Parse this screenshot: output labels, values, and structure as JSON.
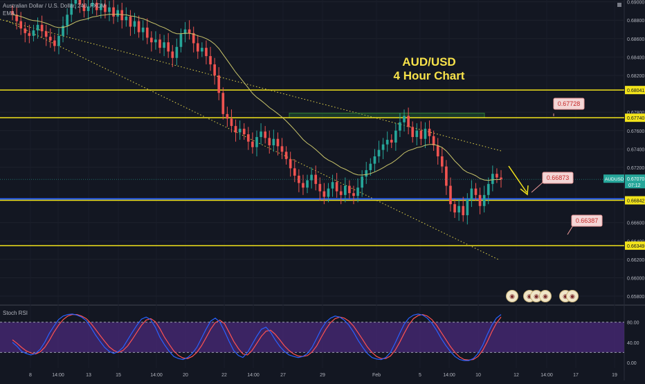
{
  "legend": {
    "symbol_line": "Australian Dollar / U.S. Dollar, 240, FXCM",
    "ema_label": "EMA"
  },
  "title_lines": [
    "AUD/USD",
    "4 Hour Chart"
  ],
  "rsi_label": "Stoch RSI",
  "colors": {
    "background": "#131722",
    "up": "#26a69a",
    "down": "#ef5350",
    "level_line": "#f2e31b",
    "ema": "#c9c46a",
    "trend_dotted": "#e8d94a",
    "support_blue": "#2962ff",
    "rsi_band": "#4a2a7a",
    "rsi_k": "#2962ff",
    "rsi_d": "#ff5252",
    "callout_fill": "#f3d6d6",
    "callout_text": "#c62828"
  },
  "chart_data": [
    {
      "type": "candlestick",
      "symbol": "AUDUSD",
      "interval": "240",
      "x_tick_labels": [
        "8",
        "14:00",
        "13",
        "15",
        "14:00",
        "20",
        "22",
        "14:00",
        "27",
        "29",
        "Feb",
        "5",
        "14:00",
        "10",
        "12",
        "14:00",
        "17",
        "19"
      ],
      "y_tick_labels": [
        "0.69000",
        "0.68800",
        "0.68600",
        "0.68400",
        "0.68200",
        "0.67800",
        "0.67600",
        "0.67400",
        "0.67200",
        "0.66600",
        "0.66400",
        "0.66200",
        "0.66000",
        "0.65800"
      ],
      "ylim": [
        0.6571,
        0.6902
      ],
      "close_approx": [
        0.6886,
        0.6879,
        0.6871,
        0.6866,
        0.6863,
        0.6869,
        0.6875,
        0.6868,
        0.6862,
        0.6858,
        0.6852,
        0.6863,
        0.6874,
        0.6886,
        0.6898,
        0.6902,
        0.6897,
        0.689,
        0.6895,
        0.6899,
        0.6891,
        0.6897,
        0.6889,
        0.6894,
        0.6884,
        0.6891,
        0.688,
        0.6884,
        0.6873,
        0.6879,
        0.6867,
        0.6872,
        0.6861,
        0.6856,
        0.6859,
        0.685,
        0.6856,
        0.6846,
        0.6839,
        0.6851,
        0.6865,
        0.687,
        0.6866,
        0.6855,
        0.6846,
        0.685,
        0.6841,
        0.6832,
        0.682,
        0.6801,
        0.6778,
        0.6773,
        0.6765,
        0.6758,
        0.6762,
        0.6756,
        0.6748,
        0.6742,
        0.6753,
        0.6759,
        0.6752,
        0.6744,
        0.6751,
        0.6743,
        0.6737,
        0.6729,
        0.6719,
        0.6711,
        0.6703,
        0.6698,
        0.6706,
        0.6712,
        0.6702,
        0.6694,
        0.6688,
        0.6697,
        0.6704,
        0.6694,
        0.669,
        0.67,
        0.6692,
        0.6689,
        0.6698,
        0.671,
        0.6717,
        0.6724,
        0.6732,
        0.6739,
        0.6745,
        0.675,
        0.6747,
        0.676,
        0.6769,
        0.6776,
        0.6764,
        0.6753,
        0.676,
        0.6751,
        0.6762,
        0.6754,
        0.6744,
        0.6732,
        0.6721,
        0.67,
        0.668,
        0.6671,
        0.6678,
        0.6668,
        0.6685,
        0.6697,
        0.669,
        0.6678,
        0.669,
        0.6702,
        0.6713,
        0.6709,
        0.6707
      ],
      "horizontal_levels": [
        {
          "price": 0.68041,
          "label": "0.68041"
        },
        {
          "price": 0.6774,
          "label": "0.67740"
        },
        {
          "price": 0.66842,
          "label": "0.66842"
        },
        {
          "price": 0.66349,
          "label": "0.66349"
        }
      ],
      "last_price": {
        "symbol": "AUDUSD",
        "label": "0.67070",
        "countdown": "07:12"
      },
      "callouts": [
        "0.67728",
        "0.66873",
        "0.66387"
      ]
    },
    {
      "type": "line",
      "title": "Stoch RSI",
      "y_tick_labels": [
        "80.00",
        "40.00",
        "0.00"
      ],
      "ylim": [
        0,
        100
      ],
      "band": [
        20,
        80
      ],
      "series": [
        {
          "values_k": [
            40,
            32,
            22,
            18,
            15,
            18,
            26,
            40,
            58,
            72,
            85,
            92,
            95,
            96,
            94,
            90,
            83,
            70,
            55,
            42,
            30,
            22,
            18,
            22,
            30,
            45,
            60,
            74,
            86,
            90,
            85,
            70,
            50,
            35,
            22,
            12,
            8,
            6,
            10,
            18,
            30,
            48,
            66,
            82,
            88,
            80,
            62,
            42,
            24,
            14,
            10,
            20,
            36,
            52,
            66,
            70,
            60,
            45,
            32,
            22,
            15,
            12,
            10,
            12,
            18,
            30,
            48,
            66,
            80,
            88,
            92,
            90,
            84,
            74,
            60,
            44,
            30,
            18,
            10,
            7,
            6,
            10,
            20,
            38,
            58,
            76,
            88,
            94,
            96,
            94,
            88,
            78,
            64,
            48,
            34,
            22,
            12,
            6,
            4,
            4,
            8,
            18,
            34,
            55,
            74,
            88,
            95
          ]
        },
        {
          "values_d": [
            45,
            38,
            30,
            23,
            19,
            17,
            21,
            30,
            44,
            60,
            74,
            85,
            92,
            95,
            95,
            92,
            87,
            78,
            66,
            54,
            42,
            31,
            24,
            20,
            24,
            33,
            46,
            60,
            74,
            84,
            87,
            81,
            67,
            50,
            36,
            23,
            14,
            9,
            8,
            12,
            20,
            33,
            49,
            66,
            79,
            84,
            77,
            60,
            42,
            28,
            17,
            15,
            24,
            38,
            52,
            62,
            64,
            56,
            45,
            33,
            24,
            17,
            13,
            12,
            14,
            21,
            33,
            50,
            66,
            79,
            87,
            90,
            88,
            82,
            72,
            59,
            45,
            31,
            20,
            12,
            8,
            8,
            13,
            24,
            40,
            58,
            75,
            87,
            93,
            95,
            92,
            85,
            74,
            60,
            46,
            32,
            20,
            11,
            6,
            5,
            6,
            12,
            24,
            41,
            61,
            78,
            90
          ]
        }
      ]
    }
  ]
}
